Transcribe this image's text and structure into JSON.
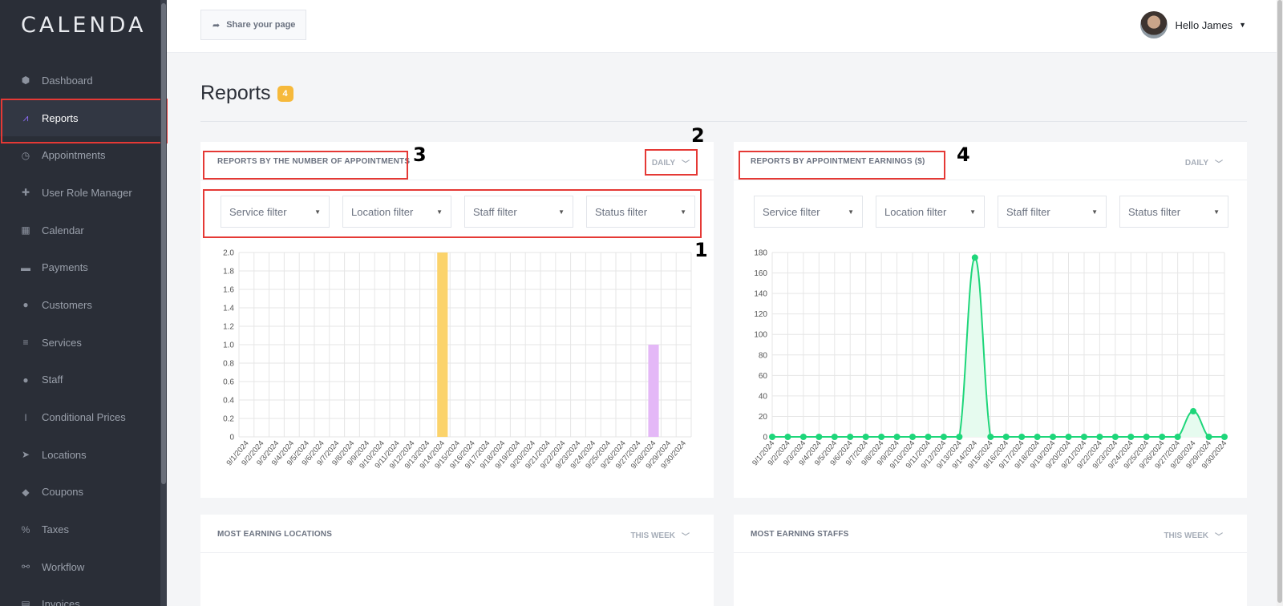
{
  "sidebar": {
    "logo": "CALENDA",
    "items": [
      {
        "label": "Dashboard",
        "icon": "cube-icon",
        "glyph": "⬢",
        "active": false
      },
      {
        "label": "Reports",
        "icon": "chart-line-icon",
        "glyph": "⩘",
        "active": true
      },
      {
        "label": "Appointments",
        "icon": "clock-icon",
        "glyph": "◷",
        "active": false
      },
      {
        "label": "User Role Manager",
        "icon": "user-plus-icon",
        "glyph": "✚",
        "active": false
      },
      {
        "label": "Calendar",
        "icon": "calendar-icon",
        "glyph": "▦",
        "active": false
      },
      {
        "label": "Payments",
        "icon": "credit-card-icon",
        "glyph": "▬",
        "active": false
      },
      {
        "label": "Customers",
        "icon": "users-icon",
        "glyph": "●",
        "active": false
      },
      {
        "label": "Services",
        "icon": "list-icon",
        "glyph": "≡",
        "active": false
      },
      {
        "label": "Staff",
        "icon": "user-icon",
        "glyph": "●",
        "active": false
      },
      {
        "label": "Conditional Prices",
        "icon": "i-cursor-icon",
        "glyph": "I",
        "active": false
      },
      {
        "label": "Locations",
        "icon": "location-arrow-icon",
        "glyph": "➤",
        "active": false
      },
      {
        "label": "Coupons",
        "icon": "tag-icon",
        "glyph": "◆",
        "active": false
      },
      {
        "label": "Taxes",
        "icon": "percent-icon",
        "glyph": "%",
        "active": false
      },
      {
        "label": "Workflow",
        "icon": "workflow-icon",
        "glyph": "⚯",
        "active": false
      },
      {
        "label": "Invoices",
        "icon": "file-icon",
        "glyph": "▤",
        "active": false
      }
    ]
  },
  "topbar": {
    "share_label": "Share your page",
    "greeting": "Hello James"
  },
  "page": {
    "title": "Reports",
    "badge": "4"
  },
  "annotations": {
    "m1": "1",
    "m2": "2",
    "m3": "3",
    "m4": "4"
  },
  "cards": {
    "appointments": {
      "title": "REPORTS BY THE NUMBER OF APPOINTMENTS",
      "period": "DAILY",
      "filters": [
        "Service filter",
        "Location filter",
        "Staff filter",
        "Status filter"
      ]
    },
    "earnings": {
      "title": "REPORTS BY APPOINTMENT EARNINGS ($)",
      "period": "DAILY",
      "filters": [
        "Service filter",
        "Location filter",
        "Staff filter",
        "Status filter"
      ]
    },
    "locations": {
      "title": "MOST EARNING LOCATIONS",
      "period": "THIS WEEK"
    },
    "staffs": {
      "title": "MOST EARNING STAFFS",
      "period": "THIS WEEK"
    }
  },
  "chart_data": [
    {
      "type": "bar",
      "categories": [
        "9/1/2024",
        "9/2/2024",
        "9/3/2024",
        "9/4/2024",
        "9/5/2024",
        "9/6/2024",
        "9/7/2024",
        "9/8/2024",
        "9/9/2024",
        "9/10/2024",
        "9/11/2024",
        "9/12/2024",
        "9/13/2024",
        "9/14/2024",
        "9/15/2024",
        "9/16/2024",
        "9/17/2024",
        "9/18/2024",
        "9/19/2024",
        "9/20/2024",
        "9/21/2024",
        "9/22/2024",
        "9/23/2024",
        "9/24/2024",
        "9/25/2024",
        "9/26/2024",
        "9/27/2024",
        "9/28/2024",
        "9/29/2024",
        "9/30/2024"
      ],
      "values": [
        0,
        0,
        0,
        0,
        0,
        0,
        0,
        0,
        0,
        0,
        0,
        0,
        0,
        2,
        0,
        0,
        0,
        0,
        0,
        0,
        0,
        0,
        0,
        0,
        0,
        0,
        0,
        1,
        0,
        0
      ],
      "bar_colors": {
        "13": "#fbd36b",
        "27": "#e4b8f7"
      },
      "ylim": [
        0,
        2.0
      ],
      "yticks": [
        "0",
        "0.2",
        "0.4",
        "0.6",
        "0.8",
        "1.0",
        "1.2",
        "1.4",
        "1.6",
        "1.8",
        "2.0"
      ],
      "grid": true,
      "title": "",
      "xlabel": "",
      "ylabel": ""
    },
    {
      "type": "line",
      "categories": [
        "9/1/2024",
        "9/2/2024",
        "9/3/2024",
        "9/4/2024",
        "9/5/2024",
        "9/6/2024",
        "9/7/2024",
        "9/8/2024",
        "9/9/2024",
        "9/10/2024",
        "9/11/2024",
        "9/12/2024",
        "9/13/2024",
        "9/14/2024",
        "9/15/2024",
        "9/16/2024",
        "9/17/2024",
        "9/18/2024",
        "9/19/2024",
        "9/20/2024",
        "9/21/2024",
        "9/22/2024",
        "9/23/2024",
        "9/24/2024",
        "9/25/2024",
        "9/26/2024",
        "9/27/2024",
        "9/28/2024",
        "9/29/2024",
        "9/30/2024"
      ],
      "values": [
        0,
        0,
        0,
        0,
        0,
        0,
        0,
        0,
        0,
        0,
        0,
        0,
        0,
        175,
        0,
        0,
        0,
        0,
        0,
        0,
        0,
        0,
        0,
        0,
        0,
        0,
        0,
        25,
        0,
        0
      ],
      "color": "#1ed67a",
      "fill": "#e6fbef",
      "ylim": [
        0,
        180
      ],
      "yticks": [
        "0",
        "20",
        "40",
        "60",
        "80",
        "100",
        "120",
        "140",
        "160",
        "180"
      ],
      "grid": true,
      "title": "",
      "xlabel": "",
      "ylabel": ""
    }
  ]
}
